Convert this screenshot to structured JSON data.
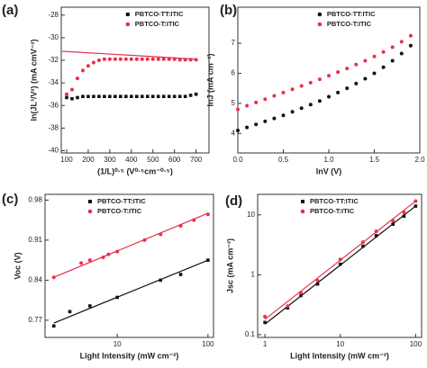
{
  "chart_data": [
    {
      "type": "scatter",
      "label": "(a)",
      "x_label": "(1/L)⁰·⁵ (V⁰·⁵cm⁻⁰·⁵)",
      "y_label": "ln(JL³/V²) (mA cmV⁻²)",
      "xlim": [
        75,
        760
      ],
      "ylim": [
        -40.2,
        -27.3
      ],
      "xticks": [
        100,
        200,
        300,
        400,
        500,
        600,
        700
      ],
      "yticks": [
        -28,
        -30,
        -32,
        -34,
        -36,
        -38,
        -40
      ],
      "legend": "upper right",
      "series": [
        {
          "name": "PBTCO-TT:ITIC",
          "color": "#111111",
          "marker": "square",
          "x": [
            100,
            125,
            150,
            175,
            200,
            225,
            250,
            275,
            300,
            325,
            350,
            375,
            400,
            425,
            450,
            475,
            500,
            525,
            550,
            575,
            600,
            625,
            650,
            675,
            700
          ],
          "values": [
            -35.3,
            -35.4,
            -35.3,
            -35.2,
            -35.2,
            -35.2,
            -35.2,
            -35.2,
            -35.2,
            -35.2,
            -35.2,
            -35.2,
            -35.2,
            -35.2,
            -35.2,
            -35.2,
            -35.2,
            -35.2,
            -35.2,
            -35.2,
            -35.2,
            -35.2,
            -35.2,
            -35.1,
            -35.0
          ]
        },
        {
          "name": "PBTCO-T:ITIC",
          "color": "#e8304a",
          "marker": "circle",
          "x": [
            100,
            125,
            150,
            175,
            200,
            225,
            250,
            275,
            300,
            325,
            350,
            375,
            400,
            425,
            450,
            475,
            500,
            525,
            550,
            575,
            600,
            625,
            650,
            675,
            700
          ],
          "values": [
            -35.0,
            -34.6,
            -33.6,
            -32.9,
            -32.5,
            -32.2,
            -32.0,
            -31.9,
            -31.9,
            -31.9,
            -31.9,
            -31.9,
            -31.9,
            -31.9,
            -31.9,
            -31.9,
            -31.9,
            -31.9,
            -31.9,
            -31.9,
            -31.9,
            -31.95,
            -31.95,
            -31.95,
            -31.95
          ]
        }
      ],
      "fits": [
        {
          "color": "#e8304a",
          "x": [
            80,
            700
          ],
          "values": [
            -31.2,
            -31.9
          ]
        }
      ]
    },
    {
      "type": "scatter",
      "label": "(b)",
      "x_label": "lnV (V)",
      "y_label": "lnJ (mA cm⁻²)",
      "xlim": [
        0,
        2
      ],
      "ylim": [
        3.35,
        8.2
      ],
      "xticks": [
        {
          "value": 0,
          "label": "0.0"
        },
        {
          "value": 0.5,
          "label": "0.5"
        },
        {
          "value": 1,
          "label": "1.0"
        },
        {
          "value": 1.5,
          "label": "1.5"
        },
        {
          "value": 2,
          "label": "2.0"
        }
      ],
      "yticks": [
        4,
        5,
        6,
        7
      ],
      "legend": "upper right",
      "series": [
        {
          "name": "PBTCO-TT:ITIC",
          "color": "#111111",
          "marker": "circle",
          "x": [
            0,
            0.1,
            0.2,
            0.3,
            0.4,
            0.5,
            0.6,
            0.7,
            0.8,
            0.9,
            1.0,
            1.1,
            1.2,
            1.3,
            1.4,
            1.5,
            1.6,
            1.7,
            1.8,
            1.9
          ],
          "values": [
            4.1,
            4.2,
            4.3,
            4.4,
            4.5,
            4.6,
            4.72,
            4.84,
            4.96,
            5.08,
            5.22,
            5.36,
            5.5,
            5.66,
            5.82,
            6.0,
            6.2,
            6.42,
            6.66,
            6.92
          ]
        },
        {
          "name": "PBTCO-T:ITIC",
          "color": "#e8304a",
          "marker": "circle",
          "x": [
            0,
            0.1,
            0.2,
            0.3,
            0.4,
            0.5,
            0.6,
            0.7,
            0.8,
            0.9,
            1.0,
            1.1,
            1.2,
            1.3,
            1.4,
            1.5,
            1.6,
            1.7,
            1.8,
            1.9
          ],
          "values": [
            4.8,
            4.92,
            5.03,
            5.14,
            5.25,
            5.36,
            5.47,
            5.58,
            5.69,
            5.8,
            5.92,
            6.04,
            6.16,
            6.29,
            6.42,
            6.56,
            6.71,
            6.87,
            7.05,
            7.25
          ]
        }
      ]
    },
    {
      "type": "scatter",
      "label": "(c)",
      "x_label": "Light Intensity (mW cm⁻²)",
      "y_label": "Voc (V)",
      "xscale": "log",
      "xlim": [
        1.6,
        115
      ],
      "ylim": [
        0.74,
        0.99
      ],
      "xticks": [
        10,
        100
      ],
      "yticks": [
        0.77,
        0.84,
        0.91,
        0.98
      ],
      "legend": "upper left",
      "series": [
        {
          "name": "PBTCO-TT:ITIC",
          "color": "#111111",
          "marker": "square",
          "x": [
            2,
            3,
            5,
            10,
            30,
            50,
            100
          ],
          "values": [
            0.76,
            0.785,
            0.795,
            0.81,
            0.84,
            0.85,
            0.875
          ]
        },
        {
          "name": "PBTCO-T:ITIC",
          "color": "#e8304a",
          "marker": "circle",
          "x": [
            2,
            4,
            5,
            7,
            8,
            10,
            20,
            30,
            50,
            70,
            100
          ],
          "values": [
            0.845,
            0.87,
            0.875,
            0.88,
            0.885,
            0.89,
            0.91,
            0.92,
            0.935,
            0.945,
            0.955
          ]
        }
      ],
      "fits": [
        {
          "color": "#111111",
          "x": [
            2,
            100
          ],
          "values": [
            0.765,
            0.875
          ]
        },
        {
          "color": "#e8304a",
          "x": [
            2,
            100
          ],
          "values": [
            0.845,
            0.957
          ]
        }
      ]
    },
    {
      "type": "scatter",
      "label": "(d)",
      "x_label": "Light Intensity (mW cm⁻²)",
      "y_label": "Jsc (mA cm⁻²)",
      "xscale": "log",
      "yscale": "log",
      "xlim": [
        0.8,
        120
      ],
      "ylim": [
        0.09,
        22
      ],
      "xticks": [
        1,
        10,
        100
      ],
      "yticks": [
        0.1,
        1,
        10
      ],
      "legend": "upper left",
      "series": [
        {
          "name": "PBTCO-TT:ITIC",
          "color": "#111111",
          "marker": "square",
          "x": [
            1,
            2,
            3,
            5,
            10,
            20,
            30,
            50,
            70,
            100
          ],
          "values": [
            0.16,
            0.28,
            0.45,
            0.7,
            1.5,
            3,
            4.5,
            7,
            9.5,
            14
          ]
        },
        {
          "name": "PBTCO-T:ITIC",
          "color": "#e8304a",
          "marker": "circle",
          "x": [
            1,
            2,
            3,
            5,
            10,
            20,
            30,
            50,
            70,
            100
          ],
          "values": [
            0.2,
            0.3,
            0.5,
            0.8,
            1.8,
            3.5,
            5.3,
            8,
            11,
            17
          ]
        }
      ],
      "fits": [
        {
          "color": "#111111",
          "x": [
            1,
            100
          ],
          "values": [
            0.15,
            14
          ]
        },
        {
          "color": "#e8304a",
          "x": [
            1,
            100
          ],
          "values": [
            0.18,
            17
          ]
        }
      ]
    }
  ]
}
